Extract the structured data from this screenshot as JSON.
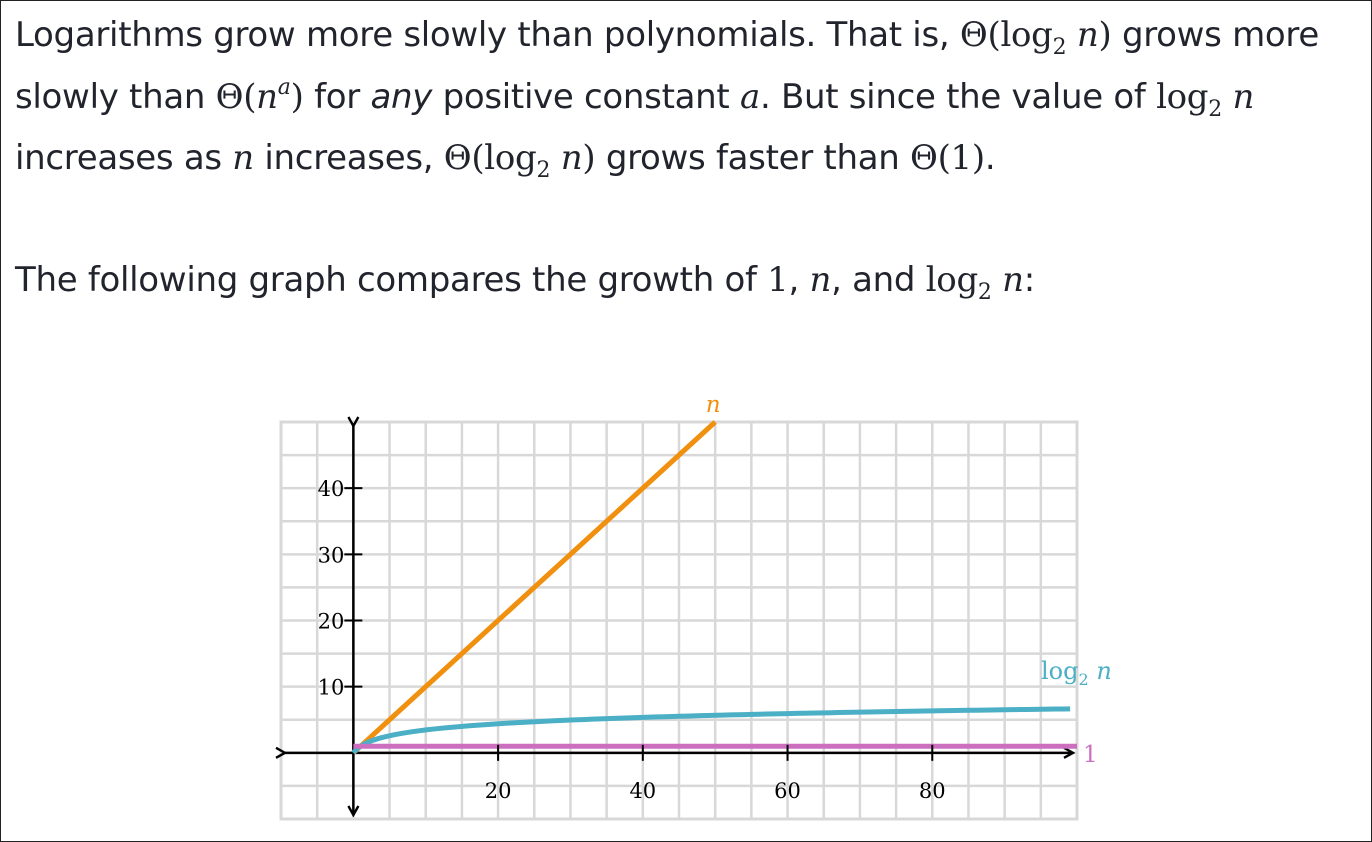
{
  "paragraph1": {
    "line1": {
      "t1": "Logarithms grow more slowly than polynomials. That is, ",
      "theta": "Θ",
      "open": "(",
      "log": "log",
      "sub": "2",
      "n": "n",
      "close": ")",
      "t2": " grows more"
    },
    "line2": {
      "t1": "slowly than ",
      "theta": "Θ",
      "open": "(",
      "n": "n",
      "sup": "a",
      "close": ")",
      "t2": " for ",
      "any": "any",
      "t3": " positive constant ",
      "a": "a",
      "t4": ". But since the value of ",
      "log": "log",
      "sub": "2",
      "n2": "n"
    },
    "line3": {
      "t1": "increases as ",
      "n": "n",
      "t2": " increases, ",
      "theta": "Θ",
      "open": "(",
      "log": "log",
      "sub": "2",
      "n2": "n",
      "close": ")",
      "t3": " grows faster than ",
      "theta2": "Θ",
      "one": "(1)",
      "t4": "."
    }
  },
  "paragraph2": {
    "t1": "The following graph compares the growth of ",
    "one": "1",
    "comma1": ", ",
    "n": "n",
    "t2": ", and ",
    "log": "log",
    "sub": "2",
    "n2": "n",
    "colon": ":"
  },
  "chart_data": {
    "type": "line",
    "x_ticks": [
      "20",
      "40",
      "60",
      "80"
    ],
    "y_ticks": [
      "10",
      "20",
      "30",
      "40"
    ],
    "xlim": [
      -10,
      100
    ],
    "ylim": [
      -10,
      50
    ],
    "grid": true,
    "series": [
      {
        "name": "n",
        "color": "#f0900e",
        "function": "n",
        "x_end": 50
      },
      {
        "name": "log₂ n",
        "color": "#4bafc6",
        "function": "log2(n)",
        "x_end": 100
      },
      {
        "name": "1",
        "color": "#cc6fbf",
        "function": "1",
        "x_end": 100
      }
    ],
    "labels": {
      "n": "n",
      "log": "log",
      "log_sub": "2",
      "log_n": "n",
      "one": "1"
    }
  }
}
